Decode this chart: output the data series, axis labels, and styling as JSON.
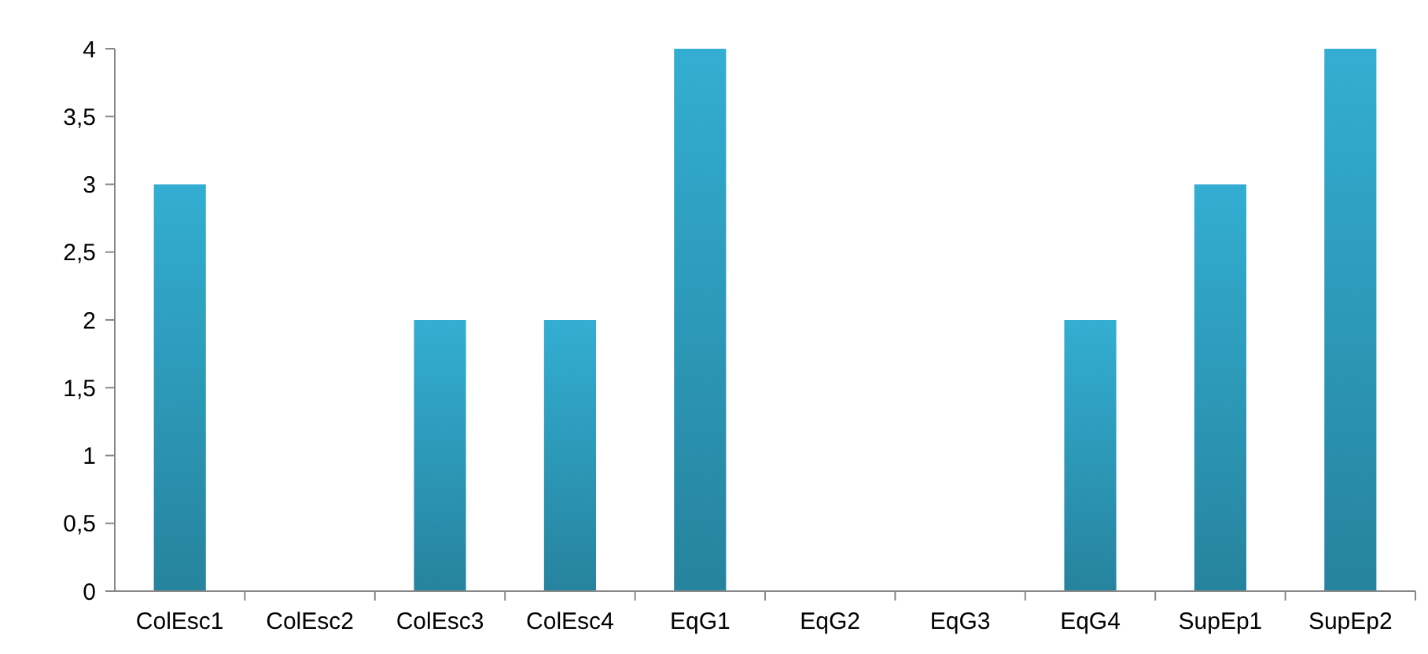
{
  "chart_data": {
    "type": "bar",
    "categories": [
      "ColEsc1",
      "ColEsc2",
      "ColEsc3",
      "ColEsc4",
      "EqG1",
      "EqG2",
      "EqG3",
      "EqG4",
      "SupEp1",
      "SupEp2"
    ],
    "values": [
      3,
      0,
      2,
      2,
      4,
      0,
      0,
      2,
      3,
      4
    ],
    "color": "#33aed2",
    "ylim": [
      0,
      4
    ],
    "yticks": [
      0,
      {
        "value": 0.5,
        "label": "0,5"
      },
      1,
      {
        "value": 1.5,
        "label": "1,5"
      },
      2,
      {
        "value": 2.5,
        "label": "2,5"
      },
      3,
      {
        "value": 3.5,
        "label": "3,5"
      },
      4
    ],
    "grid": false
  }
}
